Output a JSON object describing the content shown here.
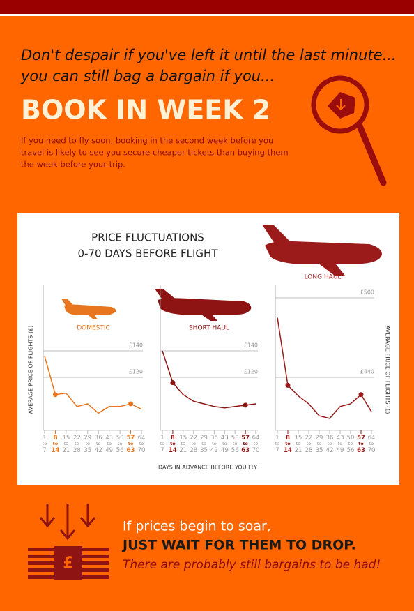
{
  "header": {
    "intro_lines": [
      "Don't despair if you've left it until the last minute...",
      "you can still bag a bargain if you..."
    ],
    "headline": "BOOK IN WEEK 2",
    "body_lines": [
      "If you need to fly soon, booking in the second week before you",
      "travel is likely to see you secure cheaper tickets than buying them",
      "the week before your trip."
    ]
  },
  "panel_title_lines": [
    "PRICE FLUCTUATIONS",
    "0-70 DAYS BEFORE FLIGHT"
  ],
  "chart_data": [
    {
      "type": "line",
      "title": "DOMESTIC",
      "color": "#e8761e",
      "ylabel": "AVERAGE PRICE OF FLIGHTS (£)",
      "categories": [
        "1 to 7",
        "8 to 14",
        "15 to 21",
        "22 to 28",
        "29 to 35",
        "36 to 42",
        "43 to 49",
        "50 to 56",
        "57 to 63",
        "64 to 70"
      ],
      "values": [
        136,
        107,
        108,
        98,
        100,
        93,
        98,
        98,
        100,
        96
      ],
      "highlight": [
        1,
        8
      ],
      "ylim": [
        80,
        190
      ],
      "yticks": [
        {
          "value": 140,
          "label": "£140"
        },
        {
          "value": 120,
          "label": "£120"
        }
      ]
    },
    {
      "type": "line",
      "title": "SHORT HAUL",
      "color": "#8e1313",
      "xlabel": "DAYS IN ADVANCE BEFORE YOU FLY",
      "categories": [
        "1 to 7",
        "8 to 14",
        "15 to 21",
        "22 to 28",
        "29 to 35",
        "36 to 42",
        "43 to 49",
        "50 to 56",
        "57 to 63",
        "64 to 70"
      ],
      "values": [
        140,
        116,
        107,
        102,
        100,
        98,
        97,
        98,
        99,
        100
      ],
      "highlight": [
        1,
        8
      ],
      "ylim": [
        80,
        190
      ],
      "yticks": [
        {
          "value": 140,
          "label": "£140"
        },
        {
          "value": 120,
          "label": "£120"
        }
      ]
    },
    {
      "type": "line",
      "title": "LONG HAUL",
      "color": "#9b1b1b",
      "ylabel": "AVERAGE PRICE OF FLIGHTS (£)",
      "categories": [
        "1 to 7",
        "8 to 14",
        "15 to 21",
        "22 to 28",
        "29 to 35",
        "36 to 42",
        "43 to 49",
        "50 to 56",
        "57 to 63",
        "64 to 70"
      ],
      "values": [
        485,
        434,
        426,
        420,
        411,
        409,
        418,
        420,
        427,
        414
      ],
      "highlight": [
        1,
        8
      ],
      "ylim": [
        400,
        510
      ],
      "yticks": [
        {
          "value": 500,
          "label": "£500"
        },
        {
          "value": 440,
          "label": "£440"
        }
      ]
    }
  ],
  "footer": {
    "lines": [
      "If prices begin to soar,",
      "JUST WAIT FOR THEM TO DROP.",
      "There are probably still bargains to be had!"
    ]
  }
}
